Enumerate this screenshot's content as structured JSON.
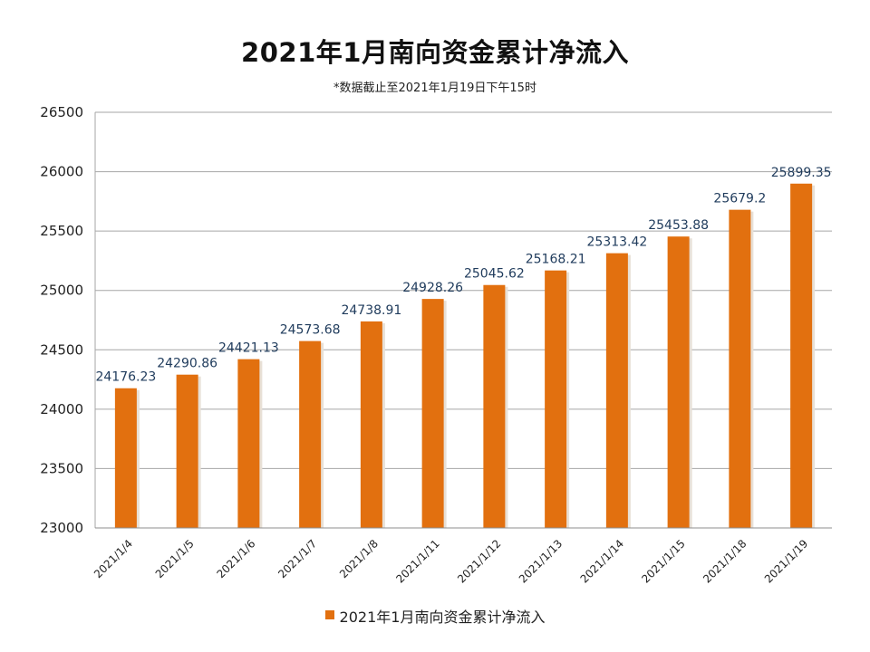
{
  "chart_data": {
    "type": "bar",
    "title": "2021年1月南向资金累计净流入",
    "subtitle": "*数据截止至2021年1月19日下午15时",
    "categories": [
      "2021/1/4",
      "2021/1/5",
      "2021/1/6",
      "2021/1/7",
      "2021/1/8",
      "2021/1/11",
      "2021/1/12",
      "2021/1/13",
      "2021/1/14",
      "2021/1/15",
      "2021/1/18",
      "2021/1/19"
    ],
    "series": [
      {
        "name": "2021年1月南向资金累计净流入",
        "values": [
          24176.23,
          24290.86,
          24421.13,
          24573.68,
          24738.91,
          24928.26,
          25045.62,
          25168.21,
          25313.42,
          25453.88,
          25679.2,
          25899.35
        ],
        "labels": [
          "24176.23",
          "24290.86",
          "24421.13",
          "24573.68",
          "24738.91",
          "24928.26",
          "25045.62",
          "25168.21",
          "25313.42",
          "25453.88",
          "25679.2",
          "25899.35"
        ],
        "color": "#E2700F"
      }
    ],
    "ylim": [
      23000,
      26500
    ],
    "yticks": [
      23000,
      23500,
      24000,
      24500,
      25000,
      25500,
      26000,
      26500
    ],
    "grid": true,
    "legend_position": "bottom",
    "xlabel": "",
    "ylabel": ""
  }
}
